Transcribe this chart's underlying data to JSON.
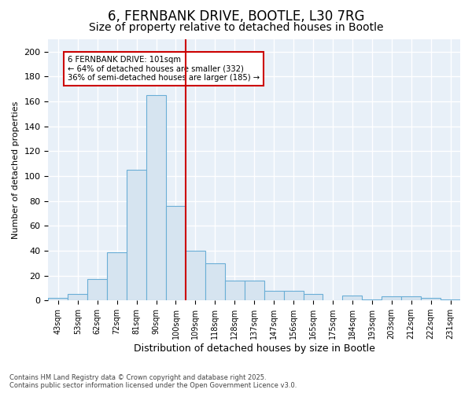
{
  "title1": "6, FERNBANK DRIVE, BOOTLE, L30 7RG",
  "title2": "Size of property relative to detached houses in Bootle",
  "xlabel": "Distribution of detached houses by size in Bootle",
  "ylabel": "Number of detached properties",
  "bins": [
    "43sqm",
    "53sqm",
    "62sqm",
    "72sqm",
    "81sqm",
    "90sqm",
    "100sqm",
    "109sqm",
    "118sqm",
    "128sqm",
    "137sqm",
    "147sqm",
    "156sqm",
    "165sqm",
    "175sqm",
    "184sqm",
    "193sqm",
    "203sqm",
    "212sqm",
    "222sqm",
    "231sqm"
  ],
  "values": [
    2,
    5,
    17,
    39,
    105,
    165,
    76,
    40,
    30,
    16,
    16,
    8,
    8,
    5,
    0,
    4,
    1,
    3,
    3,
    2,
    1
  ],
  "bar_fill_color": "#d6e4f0",
  "bar_edge_color": "#6aaed6",
  "vline_color": "#cc0000",
  "annotation_title": "6 FERNBANK DRIVE: 101sqm",
  "annotation_line1": "← 64% of detached houses are smaller (332)",
  "annotation_line2": "36% of semi-detached houses are larger (185) →",
  "annotation_box_color": "#ffffff",
  "annotation_box_edge": "#cc0000",
  "footer1": "Contains HM Land Registry data © Crown copyright and database right 2025.",
  "footer2": "Contains public sector information licensed under the Open Government Licence v3.0.",
  "ylim": [
    0,
    210
  ],
  "yticks": [
    0,
    20,
    40,
    60,
    80,
    100,
    120,
    140,
    160,
    180,
    200
  ],
  "fig_bg_color": "#ffffff",
  "plot_bg_color": "#e8f0f8",
  "grid_color": "#ffffff",
  "title_fontsize": 12,
  "subtitle_fontsize": 10,
  "vline_x_idx": 6
}
